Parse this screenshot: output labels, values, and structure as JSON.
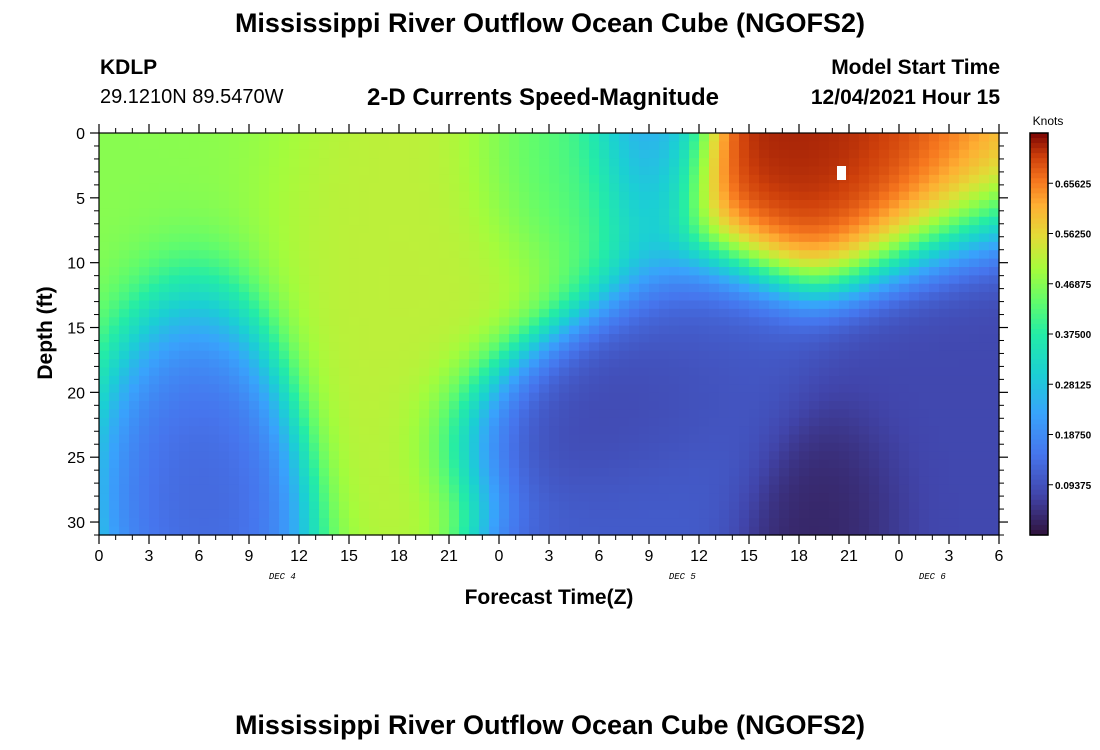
{
  "header": {
    "title": "Mississippi River Outflow Ocean Cube (NGOFS2)",
    "station_id": "KDLP",
    "station_coords": "29.1210N  89.5470W",
    "subtitle": "2-D Currents Speed-Magnitude",
    "model_start_label": "Model Start Time",
    "model_start_value": "12/04/2021 Hour 15"
  },
  "footer": {
    "title": "Mississippi River Outflow Ocean Cube (NGOFS2)"
  },
  "chart_data": {
    "type": "heatmap",
    "xlabel": "Forecast Time(Z)",
    "ylabel": "Depth (ft)",
    "x_tick_labels": [
      "0",
      "3",
      "6",
      "9",
      "12",
      "15",
      "18",
      "21",
      "0",
      "3",
      "6",
      "9",
      "12",
      "15",
      "18",
      "21",
      "0",
      "3",
      "6"
    ],
    "x_range_hours_from_dec4_00z": [
      0,
      54
    ],
    "date_labels": [
      {
        "label": "DEC 4",
        "hour": 11
      },
      {
        "label": "DEC 5",
        "hour": 35
      },
      {
        "label": "DEC 6",
        "hour": 50
      }
    ],
    "y_ticks": [
      0,
      5,
      10,
      15,
      20,
      25,
      30
    ],
    "ylim": [
      0,
      31
    ],
    "y_inverted": true,
    "colorbar": {
      "label": "Knots",
      "tick_values": [
        0.09375,
        0.1875,
        0.28125,
        0.375,
        0.46875,
        0.5625,
        0.65625
      ],
      "tick_labels": [
        "0.09375",
        "0.18750",
        "0.28125",
        "0.37500",
        "0.46875",
        "0.56250",
        "0.65625"
      ],
      "range": [
        0.0,
        0.75
      ]
    },
    "speed_features": [
      {
        "hour": 3,
        "depth": 5,
        "speed": 0.47,
        "sx": 5,
        "sy": 8
      },
      {
        "hour": 5.5,
        "depth": 19,
        "speed": 0.11,
        "sx": 2.5,
        "sy": 5
      },
      {
        "hour": 19,
        "depth": 8,
        "speed": 0.52,
        "sx": 6,
        "sy": 6
      },
      {
        "hour": 28,
        "depth": 4,
        "speed": 0.4,
        "sx": 3,
        "sy": 4
      },
      {
        "hour": 32,
        "depth": 20,
        "speed": 0.07,
        "sx": 4,
        "sy": 3
      },
      {
        "hour": 33,
        "depth": 2,
        "speed": 0.18,
        "sx": 2,
        "sy": 4
      },
      {
        "hour": 43,
        "depth": 4,
        "speed": 0.73,
        "sx": 5,
        "sy": 4
      },
      {
        "hour": 44,
        "depth": 28,
        "speed": 0.02,
        "sx": 2.5,
        "sy": 4
      },
      {
        "hour": 36,
        "depth": 19,
        "speed": 0.11,
        "sx": 4,
        "sy": 6
      },
      {
        "hour": 50,
        "depth": 22,
        "speed": 0.08,
        "sx": 4,
        "sy": 8
      }
    ]
  }
}
